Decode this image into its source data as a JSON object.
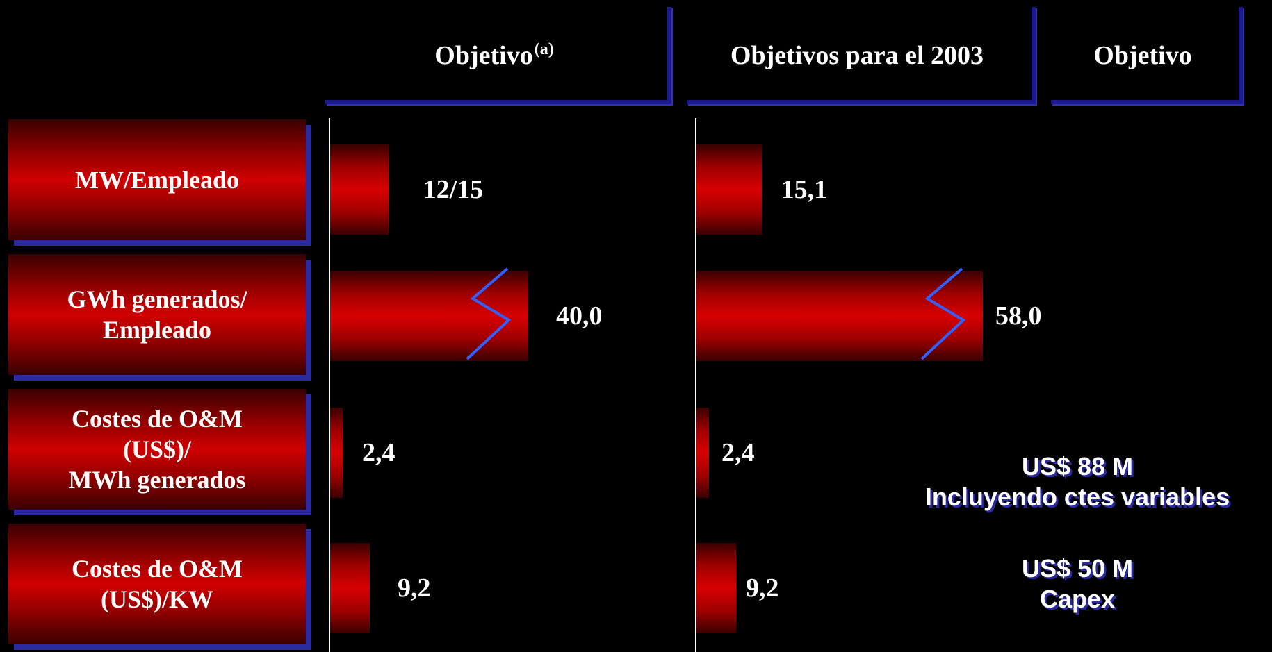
{
  "headers": {
    "col1": "Objetivo",
    "col1_sup": "(a)",
    "col2": "Objetivos para el 2003",
    "col3": "Objetivo"
  },
  "rows": [
    {
      "label": "MW/Empleado"
    },
    {
      "label": "GWh generados/\nEmpleado"
    },
    {
      "label": "Costes de O&M\n(US$)/\nMWh generados"
    },
    {
      "label": "Costes de O&M\n(US$)/KW"
    }
  ],
  "annotations": {
    "row3_line1": "US$ 88 M",
    "row3_line2": "Incluyendo ctes variables",
    "row4_line1": "US$ 50 M",
    "row4_line2": "Capex"
  },
  "colors": {
    "background": "#000000",
    "bar": "#d00000",
    "accent": "#2a2aa0",
    "break_mark": "#3060ff"
  },
  "chart_data": [
    {
      "type": "bar",
      "orientation": "horizontal",
      "title": "Objetivo(a)",
      "categories": [
        "MW/Empleado",
        "GWh generados/ Empleado",
        "Costes de O&M (US$)/ MWh generados",
        "Costes de O&M (US$)/KW"
      ],
      "value_labels": [
        "12/15",
        "40,0",
        "2,4",
        "9,2"
      ],
      "values": [
        13.5,
        40.0,
        2.4,
        9.2
      ],
      "axis_break_on": [
        "GWh generados/ Empleado"
      ]
    },
    {
      "type": "bar",
      "orientation": "horizontal",
      "title": "Objetivos para el 2003",
      "categories": [
        "MW/Empleado",
        "GWh generados/ Empleado",
        "Costes de O&M (US$)/ MWh generados",
        "Costes de O&M (US$)/KW"
      ],
      "value_labels": [
        "15,1",
        "58,0",
        "2,4",
        "9,2"
      ],
      "values": [
        15.1,
        58.0,
        2.4,
        9.2
      ],
      "axis_break_on": [
        "GWh generados/ Empleado"
      ]
    }
  ]
}
